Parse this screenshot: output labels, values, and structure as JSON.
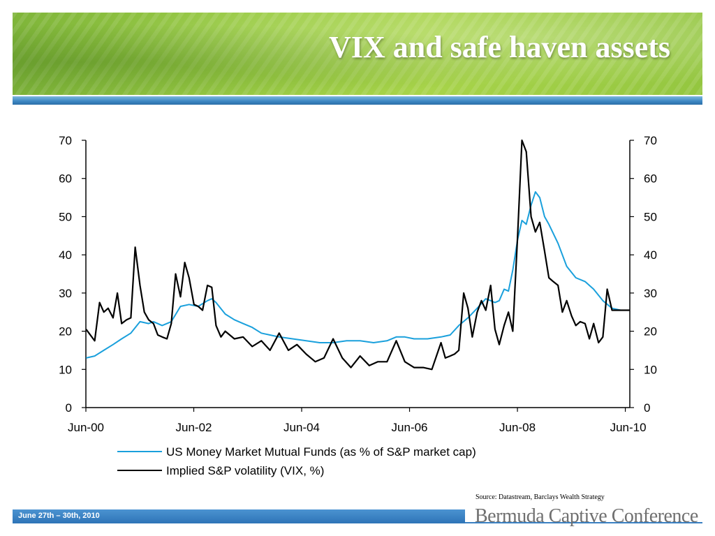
{
  "header": {
    "title": "VIX and safe haven assets"
  },
  "footer": {
    "date": "June 27th – 30th, 2010",
    "conference": "Bermuda Captive Conference",
    "source": "Source: Datastream, Barclays Wealth Strategy"
  },
  "colors": {
    "banner_green": "#9bcc45",
    "accent_blue": "#2e74b7",
    "mmf_line": "#1aa0dc",
    "vix_line": "#000000"
  },
  "chart_data": {
    "type": "line",
    "title": "",
    "xlabel": "",
    "ylabel": "",
    "ylim": [
      0,
      70
    ],
    "y2lim": [
      0,
      70
    ],
    "y_ticks": [
      "0",
      "10",
      "20",
      "30",
      "40",
      "50",
      "60",
      "70"
    ],
    "y2_ticks": [
      "0",
      "10",
      "20",
      "30",
      "40",
      "50",
      "60",
      "70"
    ],
    "x_ticks": [
      "Jun-00",
      "Jun-02",
      "Jun-04",
      "Jun-06",
      "Jun-08",
      "Jun-10"
    ],
    "x_tick_years": [
      2000.4167,
      2002.4167,
      2004.4167,
      2006.4167,
      2008.4167,
      2010.4167
    ],
    "xlim": [
      2000.4167,
      2010.5
    ],
    "legend": "bottom",
    "grid": false,
    "series": [
      {
        "name": "US Money Market Mutual Funds (as % of S&P market cap)",
        "color": "#1aa0dc",
        "x": [
          2000.42,
          2000.58,
          2000.75,
          2000.92,
          2001.08,
          2001.25,
          2001.42,
          2001.58,
          2001.67,
          2001.83,
          2002.0,
          2002.17,
          2002.33,
          2002.5,
          2002.67,
          2002.75,
          2002.83,
          2003.0,
          2003.17,
          2003.33,
          2003.5,
          2003.67,
          2003.83,
          2004.0,
          2004.25,
          2004.5,
          2004.75,
          2005.0,
          2005.25,
          2005.5,
          2005.75,
          2006.0,
          2006.17,
          2006.33,
          2006.5,
          2006.75,
          2007.0,
          2007.17,
          2007.33,
          2007.5,
          2007.67,
          2007.83,
          2007.92,
          2008.0,
          2008.08,
          2008.17,
          2008.25,
          2008.33,
          2008.42,
          2008.5,
          2008.58,
          2008.67,
          2008.75,
          2008.83,
          2008.92,
          2009.0,
          2009.17,
          2009.33,
          2009.5,
          2009.67,
          2009.83,
          2010.0,
          2010.17,
          2010.33,
          2010.5
        ],
        "values": [
          13,
          13.5,
          15,
          16.5,
          18,
          19.5,
          22.5,
          22,
          22.5,
          21.5,
          22.5,
          26.5,
          27,
          26.5,
          28,
          28.5,
          27.5,
          24.5,
          23,
          22,
          21,
          19.5,
          19,
          18.5,
          18,
          17.5,
          17,
          17,
          17.5,
          17.5,
          17,
          17.5,
          18.5,
          18.5,
          18,
          18,
          18.5,
          19,
          21.5,
          23.5,
          26,
          28.5,
          28,
          27.5,
          28,
          31,
          30.5,
          36,
          44,
          49,
          48,
          53,
          56.5,
          55,
          50,
          48,
          43,
          37,
          34,
          33,
          31,
          28,
          26,
          25.5,
          25.5
        ]
      },
      {
        "name": "Implied S&P volatility (VIX, %)",
        "color": "#000000",
        "x": [
          2000.42,
          2000.5,
          2000.58,
          2000.67,
          2000.75,
          2000.83,
          2000.92,
          2001.0,
          2001.08,
          2001.17,
          2001.25,
          2001.33,
          2001.42,
          2001.5,
          2001.58,
          2001.67,
          2001.75,
          2001.83,
          2001.92,
          2002.0,
          2002.08,
          2002.17,
          2002.25,
          2002.33,
          2002.42,
          2002.5,
          2002.58,
          2002.67,
          2002.75,
          2002.83,
          2002.92,
          2003.0,
          2003.17,
          2003.33,
          2003.5,
          2003.67,
          2003.83,
          2004.0,
          2004.17,
          2004.33,
          2004.5,
          2004.67,
          2004.83,
          2005.0,
          2005.17,
          2005.33,
          2005.5,
          2005.67,
          2005.83,
          2006.0,
          2006.17,
          2006.33,
          2006.5,
          2006.67,
          2006.83,
          2007.0,
          2007.08,
          2007.17,
          2007.25,
          2007.33,
          2007.42,
          2007.5,
          2007.58,
          2007.67,
          2007.75,
          2007.83,
          2007.92,
          2008.0,
          2008.08,
          2008.17,
          2008.25,
          2008.33,
          2008.42,
          2008.5,
          2008.58,
          2008.67,
          2008.75,
          2008.83,
          2008.92,
          2009.0,
          2009.08,
          2009.17,
          2009.25,
          2009.33,
          2009.42,
          2009.5,
          2009.58,
          2009.67,
          2009.75,
          2009.83,
          2009.92,
          2010.0,
          2010.08,
          2010.17,
          2010.25,
          2010.33,
          2010.42,
          2010.5
        ],
        "values": [
          20.5,
          19,
          17.5,
          27.5,
          25,
          26,
          23.5,
          30,
          22,
          23,
          23.5,
          42,
          32,
          25,
          23,
          22,
          19,
          18.5,
          18,
          22,
          35,
          29,
          38,
          34,
          27,
          26.5,
          25.5,
          32,
          31.5,
          21.5,
          18.5,
          20,
          18,
          18.5,
          16,
          17.5,
          15,
          19.5,
          15,
          16.5,
          14,
          12,
          13,
          18,
          13,
          10.5,
          13.5,
          11,
          12,
          12,
          17.5,
          12,
          10.5,
          10.5,
          10,
          17,
          13,
          13.5,
          14,
          15,
          30,
          26,
          18.5,
          25,
          28,
          25.5,
          32,
          20.5,
          16.5,
          21.5,
          25,
          20,
          45,
          70,
          67,
          50,
          46,
          48.5,
          41,
          34,
          33,
          32,
          25,
          28,
          24,
          21.5,
          22.5,
          22,
          18,
          22,
          17,
          18.5,
          31,
          25.5,
          25.5,
          25.5,
          25.5,
          25.5
        ]
      }
    ]
  }
}
